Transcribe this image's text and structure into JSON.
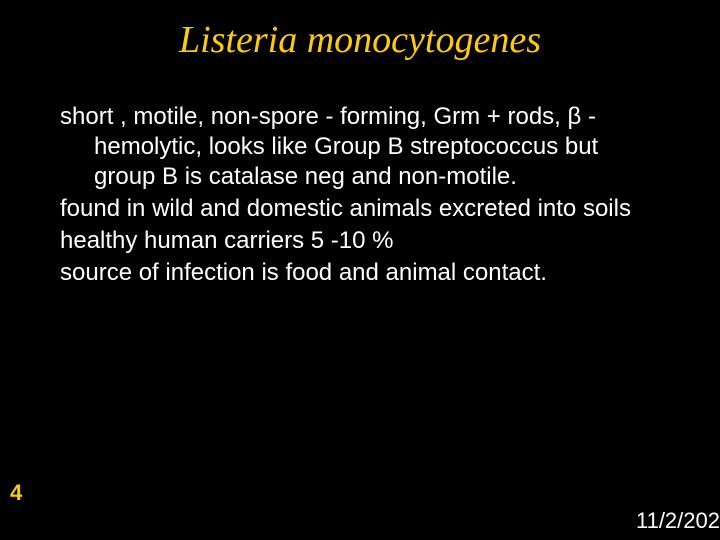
{
  "slide": {
    "title": "Listeria monocytogenes",
    "title_color": "#ffcc00",
    "title_fontsize": 38,
    "body_color": "#ffffff",
    "body_fontsize": 24,
    "background_color": "#000000",
    "paragraphs": {
      "p1": "short , motile, non-spore - forming, Grm + rods, β - hemolytic, looks like Group B streptococcus but group B is catalase neg and non-motile.",
      "p2": "found in wild and domestic animals excreted into soils",
      "p3": "healthy human carriers 5 -10 %",
      "p4": "source of infection is food and animal contact."
    },
    "slide_number": "4",
    "slide_number_color": "#ffcc00",
    "slide_number_fontsize": 22,
    "date": "11/2/202",
    "date_color": "#ffffff",
    "date_fontsize": 22
  }
}
